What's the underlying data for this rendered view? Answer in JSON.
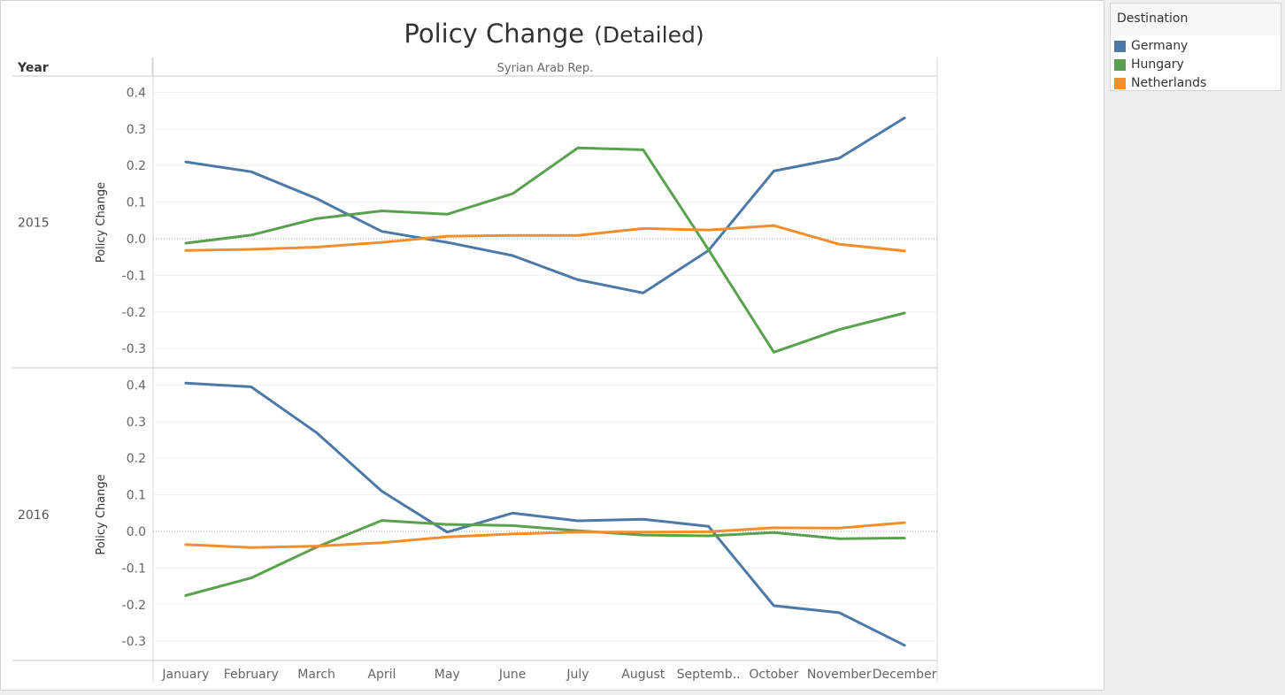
{
  "title": {
    "main": "Policy Change",
    "sub": "(Detailed)"
  },
  "row_header": "Year",
  "column_header": "Syrian Arab Rep.",
  "legend": {
    "title": "Destination",
    "items": [
      {
        "label": "Germany",
        "color": "#4e79a7"
      },
      {
        "label": "Hungary",
        "color": "#59a14f"
      },
      {
        "label": "Netherlands",
        "color": "#f28e2b"
      }
    ]
  },
  "chart_data": {
    "type": "line",
    "x": [
      "January",
      "February",
      "March",
      "April",
      "May",
      "June",
      "July",
      "August",
      "Septemb..",
      "October",
      "November",
      "December"
    ],
    "ylabel": "Policy Change",
    "panels": [
      {
        "year": "2015",
        "ylim": [
          -0.35,
          0.42
        ],
        "yticks": [
          "0.4",
          "0.3",
          "0.2",
          "0.1",
          "0.0",
          "-0.1",
          "-0.2",
          "-0.3"
        ],
        "series": [
          {
            "name": "Germany",
            "values": [
              0.21,
              0.183,
              0.11,
              0.02,
              -0.01,
              -0.046,
              -0.112,
              -0.148,
              -0.032,
              0.185,
              0.22,
              0.33
            ]
          },
          {
            "name": "Hungary",
            "values": [
              -0.012,
              0.01,
              0.055,
              0.076,
              0.067,
              0.123,
              0.248,
              0.243,
              -0.03,
              -0.31,
              -0.248,
              -0.203
            ]
          },
          {
            "name": "Netherlands",
            "values": [
              -0.032,
              -0.029,
              -0.023,
              -0.01,
              0.007,
              0.009,
              0.009,
              0.028,
              0.024,
              0.036,
              -0.015,
              -0.033
            ]
          }
        ]
      },
      {
        "year": "2016",
        "ylim": [
          -0.35,
          0.42
        ],
        "yticks": [
          "0.4",
          "0.3",
          "0.2",
          "0.1",
          "0.0",
          "-0.1",
          "-0.2",
          "-0.3"
        ],
        "series": [
          {
            "name": "Germany",
            "values": [
              0.405,
              0.395,
              0.27,
              0.11,
              -0.002,
              0.05,
              0.029,
              0.033,
              0.014,
              -0.203,
              -0.222,
              -0.311
            ]
          },
          {
            "name": "Hungary",
            "values": [
              -0.175,
              -0.127,
              -0.043,
              0.03,
              0.019,
              0.016,
              0.002,
              -0.01,
              -0.012,
              -0.003,
              -0.02,
              -0.018
            ]
          },
          {
            "name": "Netherlands",
            "values": [
              -0.036,
              -0.044,
              -0.04,
              -0.031,
              -0.015,
              -0.007,
              -0.002,
              -0.002,
              -0.001,
              0.01,
              0.009,
              0.024
            ]
          }
        ]
      }
    ]
  }
}
